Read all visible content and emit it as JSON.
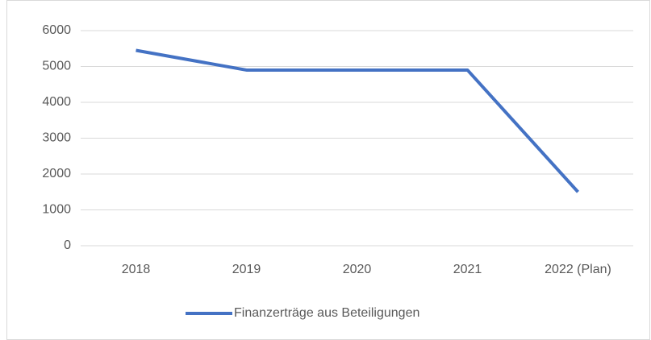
{
  "chart_data": {
    "type": "line",
    "categories": [
      "2018",
      "2019",
      "2020",
      "2021",
      "2022 (Plan)"
    ],
    "series": [
      {
        "name": "Finanzerträge aus Beteiligungen",
        "color": "#4472c4",
        "values": [
          5450,
          4900,
          4900,
          4900,
          1500
        ]
      }
    ],
    "ylim": [
      0,
      6000
    ],
    "yticks": [
      0,
      1000,
      2000,
      3000,
      4000,
      5000,
      6000
    ],
    "grid": true,
    "legend": "bottom"
  }
}
